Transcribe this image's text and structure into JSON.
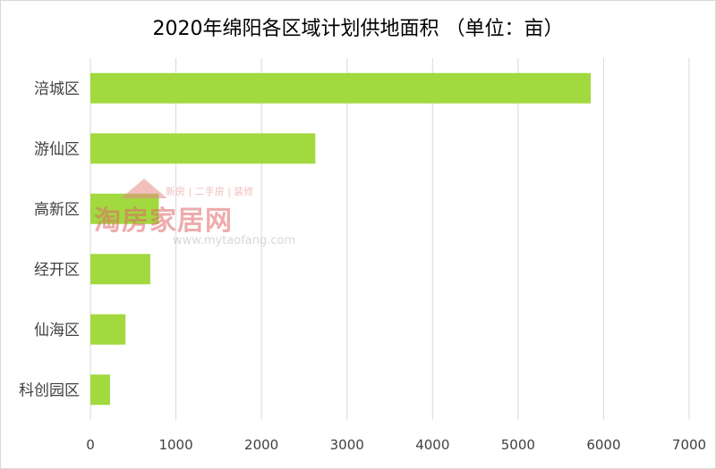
{
  "chart_data": {
    "type": "bar",
    "orientation": "horizontal",
    "title": "2020年绵阳各区域计划供地面积  （单位：亩）",
    "categories": [
      "涪城区",
      "游仙区",
      "高新区",
      "经开区",
      "仙海区",
      "科创园区"
    ],
    "values": [
      5850,
      2630,
      800,
      700,
      410,
      230
    ],
    "xlim": [
      0,
      7000
    ],
    "xticks": [
      "0",
      "1000",
      "2000",
      "3000",
      "4000",
      "5000",
      "6000",
      "7000"
    ],
    "grid": "vertical",
    "colors": {
      "bar": "#a2d93f",
      "grid": "#d9d9d9",
      "text": "#404040"
    }
  },
  "watermark": {
    "logo": "淘房家居网",
    "tags": "新房 | 二手房 | 装修",
    "url": "www.mytaofang.com"
  }
}
